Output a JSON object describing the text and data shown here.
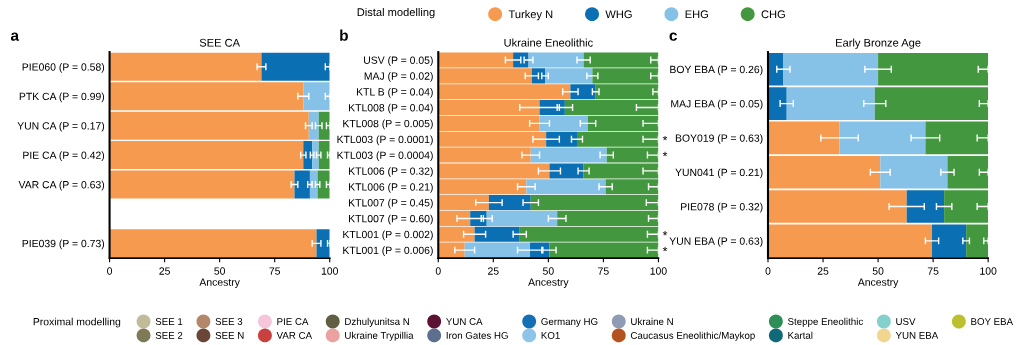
{
  "chart_data": [
    {
      "type": "bar",
      "orientation": "horizontal",
      "title": "SEE CA",
      "xlabel": "Ancestry",
      "annotations": [
        "a"
      ],
      "categories": [
        "PIE060 (P = 0.58)",
        "PTK CA (P = 0.99)",
        "YUN CA (P = 0.17)",
        "PIE CA (P = 0.42)",
        "VAR CA (P = 0.63)",
        null,
        "PIE039 (P = 0.73)"
      ],
      "xlim": [
        0,
        100
      ],
      "xticks": [
        0,
        25,
        50,
        75,
        100
      ],
      "grid": false,
      "legend": false,
      "series": [
        {
          "color": "#f59a4f",
          "values": [
            69,
            88,
            90.5,
            88,
            84,
            null,
            94
          ],
          "base": [
            0,
            0,
            0,
            0,
            0,
            null,
            0
          ],
          "errors": [
            2,
            2.5,
            1.5,
            1.2,
            1.5,
            null,
            2
          ]
        },
        {
          "color": "#0a6fb3",
          "values": [
            31,
            null,
            null,
            4,
            7,
            null,
            6
          ],
          "base": [
            69,
            null,
            null,
            88,
            84,
            null,
            94
          ],
          "errors": [
            [
              98,
              100
            ],
            null,
            null,
            0.8,
            1,
            null,
            [
              99,
              100
            ]
          ]
        },
        {
          "color": "#86c2e8",
          "values": [
            null,
            12,
            4.5,
            3,
            3.5,
            null,
            null
          ],
          "base": [
            null,
            88,
            90.5,
            92,
            91,
            null,
            null
          ],
          "errors": [
            null,
            [
              98,
              100
            ],
            1.5,
            1,
            1,
            null,
            null
          ]
        },
        {
          "color": "#43983f",
          "values": [
            null,
            null,
            5,
            5,
            5.5,
            null,
            null
          ],
          "base": [
            null,
            null,
            95,
            95,
            94.5,
            null,
            null
          ],
          "errors": [
            null,
            null,
            [
              98.5,
              100
            ],
            [
              99,
              100
            ],
            [
              98.5,
              100
            ],
            null,
            null
          ]
        }
      ]
    },
    {
      "type": "bar",
      "orientation": "horizontal",
      "title": "Ukraine Eneolithic",
      "xlabel": "Ancestry",
      "legend": "top",
      "legend_title": "Distal modelling",
      "annotations": [
        "b"
      ],
      "categories": [
        "USV (P = 0.05)",
        "MAJ (P = 0.02)",
        "KTL B (P = 0.04)",
        "KTL008 (P = 0.04)",
        "KTL008 (P = 0.005)",
        "KTL003 (P = 0.0001)",
        "KTL003 (P = 0.0004)",
        "KTL006 (P = 0.32)",
        "KTL006 (P = 0.21)",
        "KTL007 (P = 0.45)",
        "KTL007 (P = 0.60)",
        "KTL001 (P = 0.002)",
        "KTL001 (P = 0.006)"
      ],
      "xlim": [
        0,
        100
      ],
      "xticks": [
        0,
        25,
        50,
        75,
        100
      ],
      "grid": false,
      "series": [
        {
          "name": "Turkey N",
          "color": "#f59a4f",
          "values": [
            34,
            42.5,
            60,
            46,
            46,
            49,
            42,
            50.5,
            40,
            23,
            14.5,
            16.5,
            12
          ],
          "base": [
            0,
            0,
            0,
            0,
            0,
            0,
            0,
            0,
            0,
            0,
            0,
            0,
            0
          ],
          "errors": [
            3.5,
            3,
            3.5,
            9,
            4.5,
            6,
            4,
            5,
            4,
            6,
            6,
            5,
            4.5
          ]
        },
        {
          "name": "WHG",
          "color": "#0a6fb3",
          "values": [
            7,
            6,
            11.5,
            11.5,
            null,
            14,
            null,
            15.5,
            null,
            19,
            7.5,
            20.5,
            9
          ],
          "base": [
            34,
            42.5,
            60,
            46,
            null,
            49,
            null,
            50.5,
            null,
            23,
            14.5,
            16.5,
            41.5
          ],
          "errors": [
            2,
            1.5,
            1.5,
            3.5,
            null,
            2.5,
            null,
            2.5,
            null,
            3.5,
            2.5,
            3,
            3
          ]
        },
        {
          "name": "EHG",
          "color": "#86c2e8",
          "values": [
            25,
            21.5,
            null,
            null,
            22,
            null,
            34.5,
            null,
            36,
            null,
            32,
            null,
            29.5
          ],
          "base": [
            41,
            48.5,
            null,
            null,
            46,
            null,
            42,
            null,
            40,
            null,
            22,
            null,
            12
          ],
          "errors": [
            3,
            2.5,
            null,
            null,
            3.5,
            null,
            3,
            null,
            3,
            null,
            4,
            null,
            5.5
          ]
        },
        {
          "name": "CHG",
          "color": "#43983f",
          "values": [
            34,
            30,
            28.5,
            42.5,
            32,
            37,
            23.5,
            34,
            24,
            58,
            46,
            63,
            49.5
          ],
          "base": [
            66,
            70,
            71.5,
            57.5,
            68,
            63,
            76.5,
            66,
            76,
            42,
            54,
            37,
            50.5
          ],
          "errors": [
            [
              96.5,
              100
            ],
            [
              96.5,
              100
            ],
            [
              97.5,
              100
            ],
            [
              90,
              100
            ],
            [
              93,
              100
            ],
            [
              93,
              100
            ],
            [
              95,
              100
            ],
            [
              93,
              100
            ],
            [
              95.5,
              100
            ],
            [
              94.5,
              100
            ],
            [
              95.5,
              100
            ],
            [
              95,
              100
            ],
            [
              95,
              100
            ]
          ],
          "value_labels": [
            null,
            null,
            null,
            null,
            null,
            "*",
            "*",
            null,
            null,
            null,
            null,
            "*",
            "*"
          ]
        }
      ]
    },
    {
      "type": "bar",
      "orientation": "horizontal",
      "title": "Early Bronze Age",
      "xlabel": "Ancestry",
      "annotations": [
        "c"
      ],
      "legend": false,
      "categories": [
        "BOY EBA (P = 0.26)",
        "MAJ EBA (P = 0.05)",
        "BOY019 (P = 0.63)",
        "YUN041 (P = 0.21)",
        "PIE078 (P = 0.32)",
        "YUN EBA (P = 0.63)"
      ],
      "xlim": [
        0,
        100
      ],
      "xticks": [
        0,
        25,
        50,
        75,
        100
      ],
      "grid": false,
      "series": [
        {
          "color": "#f59a4f",
          "values": [
            null,
            null,
            32.5,
            51,
            63,
            74.5
          ],
          "base": [
            null,
            null,
            0,
            0,
            0,
            0
          ],
          "errors": [
            null,
            null,
            8.5,
            4.5,
            8,
            3
          ]
        },
        {
          "color": "#0a6fb3",
          "values": [
            7,
            8.5,
            null,
            null,
            17,
            15.5
          ],
          "base": [
            0,
            0,
            null,
            null,
            63,
            74.5
          ],
          "errors": [
            3,
            3,
            null,
            null,
            3.5,
            1.5
          ]
        },
        {
          "color": "#86c2e8",
          "values": [
            43,
            40,
            39,
            30.5,
            null,
            null
          ],
          "base": [
            7,
            8.5,
            32.5,
            51,
            null,
            null
          ],
          "errors": [
            6,
            5,
            6.5,
            3,
            null,
            null
          ]
        },
        {
          "color": "#43983f",
          "values": [
            50,
            51.5,
            28.5,
            18.5,
            20,
            10
          ],
          "base": [
            50,
            48.5,
            71.5,
            81.5,
            80,
            90
          ],
          "errors": [
            [
              95.5,
              100
            ],
            [
              96,
              100
            ],
            [
              95,
              100
            ],
            [
              96,
              100
            ],
            [
              95,
              100
            ],
            [
              98,
              100
            ]
          ]
        }
      ]
    },
    {
      "type": "other",
      "legend_title": "Proximal modelling",
      "categories": [
        "SEE 1",
        "SEE 2",
        "SEE 3",
        "SEE N",
        "PIE CA",
        "VAR CA",
        "Dzhulyunitsa N",
        "Ukraine Trypillia",
        "YUN CA",
        "Iron Gates HG",
        "Germany HG",
        "KO1",
        "Ukraine N",
        "Caucasus Eneolithic/Maykop",
        "Steppe Eneolithic",
        "Kartal",
        "USV",
        "YUN EBA",
        "BOY EBA"
      ],
      "colors": [
        "#c2bb9a",
        "#7e7a58",
        "#b5876a",
        "#6b4538",
        "#f5c6da",
        "#c9413f",
        "#615f42",
        "#eba1a0",
        "#5b1233",
        "#5d6e8f",
        "#1470b4",
        "#8ec4e8",
        "#8f9bb5",
        "#b5531f",
        "#2e8f56",
        "#0e6a78",
        "#84d0cc",
        "#f2d68f",
        "#bcc02e"
      ]
    }
  ]
}
